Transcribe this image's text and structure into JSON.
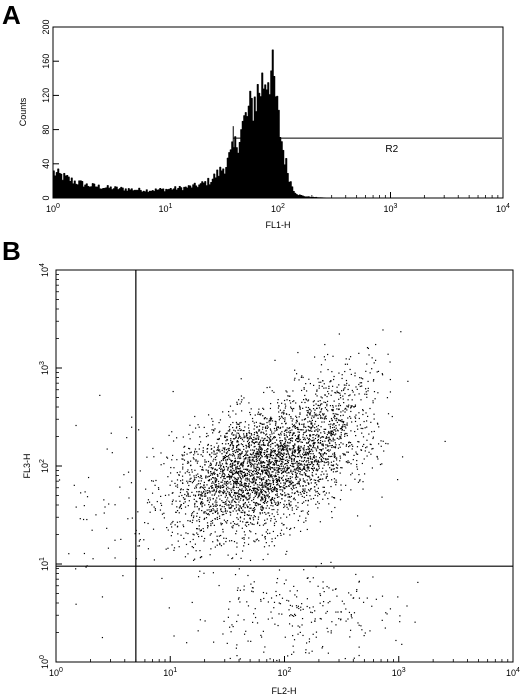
{
  "chart_data": [
    {
      "panel": "A",
      "type": "area",
      "xlabel": "FL1-H",
      "ylabel": "Counts",
      "x_scale": "log",
      "xlim": [
        1,
        10000
      ],
      "ylim": [
        0,
        200
      ],
      "x_ticks": [
        {
          "base": "10",
          "exp": "0",
          "value": 1
        },
        {
          "base": "10",
          "exp": "1",
          "value": 10
        },
        {
          "base": "10",
          "exp": "2",
          "value": 100
        },
        {
          "base": "10",
          "exp": "3",
          "value": 1000
        },
        {
          "base": "10",
          "exp": "4",
          "value": 10000
        }
      ],
      "y_ticks": [
        "0",
        "40",
        "80",
        "120",
        "160",
        "200"
      ],
      "y_tick_values": [
        0,
        40,
        80,
        120,
        160,
        200
      ],
      "x": [
        1,
        1.5,
        2,
        3,
        5,
        7,
        10,
        15,
        20,
        25,
        30,
        35,
        40,
        45,
        50,
        55,
        60,
        65,
        70,
        75,
        80,
        85,
        90,
        95,
        100,
        110,
        120,
        130,
        140,
        150,
        170,
        200,
        300,
        1000,
        10000
      ],
      "y": [
        30,
        20,
        15,
        12,
        10,
        9,
        10,
        12,
        15,
        20,
        30,
        40,
        55,
        72,
        88,
        100,
        110,
        120,
        130,
        138,
        146,
        150,
        140,
        120,
        95,
        60,
        35,
        18,
        8,
        4,
        2,
        1,
        0,
        0,
        0
      ],
      "gate": {
        "label": "R2",
        "x_start": 40,
        "x_end": 10000,
        "y": 70
      }
    },
    {
      "panel": "B",
      "type": "scatter",
      "xlabel": "FL2-H",
      "ylabel": "FL3-H",
      "x_scale": "log",
      "y_scale": "log",
      "xlim": [
        1,
        10000
      ],
      "ylim": [
        1,
        10000
      ],
      "x_ticks": [
        {
          "base": "10",
          "exp": "0",
          "value": 1
        },
        {
          "base": "10",
          "exp": "1",
          "value": 10
        },
        {
          "base": "10",
          "exp": "2",
          "value": 100
        },
        {
          "base": "10",
          "exp": "3",
          "value": 1000
        },
        {
          "base": "10",
          "exp": "4",
          "value": 10000
        }
      ],
      "y_ticks": [
        {
          "base": "10",
          "exp": "0",
          "value": 1
        },
        {
          "base": "10",
          "exp": "1",
          "value": 10
        },
        {
          "base": "10",
          "exp": "2",
          "value": 100
        },
        {
          "base": "10",
          "exp": "3",
          "value": 1000
        },
        {
          "base": "10",
          "exp": "4",
          "value": 10000
        }
      ],
      "quadrant_lines": {
        "x": 5,
        "y": 9.5
      },
      "clusters": [
        {
          "center_x": 60,
          "center_y": 90,
          "spread_x_decades": 0.38,
          "spread_y_decades": 0.3,
          "count": 3200,
          "tilt": 0.35
        },
        {
          "center_x": 120,
          "center_y": 3,
          "spread_x_decades": 0.45,
          "spread_y_decades": 0.25,
          "count": 260,
          "tilt": 0
        },
        {
          "center_x": 250,
          "center_y": 300,
          "spread_x_decades": 0.25,
          "spread_y_decades": 0.3,
          "count": 500,
          "tilt": 0.6
        },
        {
          "center_x": 2.5,
          "center_y": 30,
          "spread_x_decades": 0.2,
          "spread_y_decades": 0.5,
          "count": 45,
          "tilt": 0
        }
      ]
    }
  ],
  "labels": {
    "panel_a": "A",
    "panel_b": "B",
    "gate": "R2"
  }
}
